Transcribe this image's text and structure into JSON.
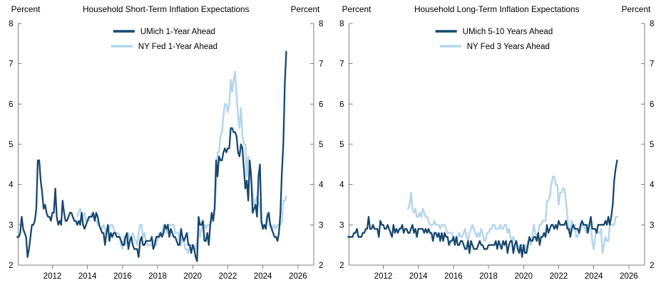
{
  "colors": {
    "dark_blue": "#17486F",
    "light_blue": "#B5D6EC",
    "axis": "#808080",
    "text": "#000000",
    "background": "#FFFFFF"
  },
  "chart_data": [
    {
      "type": "line",
      "title": "Household Short-Term Inflation Expectations",
      "unit_label_left": "Percent",
      "unit_label_right": "Percent",
      "ylim": [
        2,
        8
      ],
      "yticks": [
        2,
        3,
        4,
        5,
        6,
        7,
        8
      ],
      "xlim": [
        2010.05,
        2026.9
      ],
      "xticks": [
        2012,
        2014,
        2016,
        2018,
        2020,
        2022,
        2024,
        2026
      ],
      "grid": false,
      "legend_position": "top-center-inside",
      "series": [
        {
          "name": "UMich 1-Year Ahead",
          "color_key": "dark_blue",
          "line_width": 2.3,
          "start_year": 2010.0,
          "interval_years": 0.0833333,
          "values": [
            2.7,
            2.7,
            2.8,
            3.2,
            2.9,
            2.8,
            2.7,
            2.2,
            2.4,
            2.7,
            3.0,
            3.0,
            3.1,
            3.4,
            4.6,
            4.6,
            4.1,
            3.8,
            3.4,
            3.5,
            3.3,
            3.2,
            3.2,
            3.1,
            3.3,
            3.3,
            3.9,
            3.2,
            3.0,
            3.1,
            3.0,
            3.6,
            3.3,
            3.1,
            3.1,
            3.2,
            3.3,
            3.3,
            3.2,
            3.1,
            3.1,
            3.0,
            3.1,
            3.0,
            3.3,
            3.0,
            2.9,
            3.0,
            3.1,
            3.2,
            3.2,
            3.2,
            3.3,
            3.1,
            3.3,
            3.2,
            3.0,
            2.9,
            2.8,
            2.8,
            2.5,
            2.8,
            3.0,
            2.6,
            2.8,
            2.7,
            2.8,
            2.8,
            2.7,
            2.7,
            2.7,
            2.6,
            2.5,
            2.5,
            2.7,
            2.8,
            2.4,
            2.6,
            2.7,
            2.5,
            2.4,
            2.4,
            2.4,
            2.2,
            2.6,
            2.7,
            2.5,
            2.5,
            2.6,
            2.6,
            2.6,
            2.6,
            2.7,
            2.4,
            2.5,
            2.7,
            2.7,
            2.7,
            2.8,
            2.7,
            2.8,
            3.0,
            2.9,
            3.0,
            2.7,
            2.9,
            2.8,
            2.7,
            2.7,
            2.6,
            2.5,
            2.5,
            2.9,
            2.7,
            2.6,
            2.7,
            2.8,
            2.5,
            2.5,
            2.3,
            2.5,
            2.4,
            2.2,
            2.1,
            3.2,
            3.0,
            3.0,
            3.1,
            2.6,
            2.6,
            2.8,
            2.5,
            3.0,
            3.3,
            3.1,
            3.4,
            4.6,
            4.2,
            4.7,
            4.6,
            4.6,
            4.8,
            4.9,
            4.8,
            4.9,
            4.9,
            5.4,
            5.4,
            5.3,
            5.3,
            5.2,
            4.8,
            4.7,
            5.0,
            4.9,
            4.4,
            3.9,
            4.1,
            3.6,
            4.6,
            4.2,
            3.3,
            3.4,
            3.5,
            3.2,
            4.2,
            4.5,
            3.1,
            2.9,
            3.0,
            2.9,
            3.2,
            3.3,
            3.0,
            2.9,
            2.8,
            2.7,
            2.7,
            2.6,
            2.8,
            3.3,
            4.3,
            5.0,
            6.5,
            7.3
          ]
        },
        {
          "name": "NY Fed 1-Year Ahead",
          "color_key": "light_blue",
          "line_width": 2.5,
          "start_year": 2013.4167,
          "interval_years": 0.0833333,
          "values": [
            3.2,
            3.3,
            3.4,
            3.3,
            3.2,
            3.3,
            3.1,
            3.1,
            3.1,
            3.2,
            3.3,
            3.2,
            3.1,
            3.1,
            3.0,
            3.0,
            2.9,
            2.9,
            3.0,
            2.9,
            2.8,
            3.0,
            2.9,
            3.0,
            3.0,
            2.9,
            2.8,
            2.8,
            2.8,
            2.7,
            2.5,
            2.4,
            2.7,
            2.5,
            2.6,
            2.8,
            2.6,
            2.7,
            2.8,
            2.7,
            2.6,
            2.5,
            2.8,
            3.0,
            3.0,
            2.7,
            2.8,
            2.6,
            2.5,
            2.5,
            2.5,
            2.5,
            2.6,
            2.6,
            2.5,
            2.7,
            2.8,
            2.8,
            2.8,
            3.0,
            3.0,
            2.8,
            3.0,
            3.0,
            3.0,
            3.0,
            3.0,
            2.8,
            2.8,
            2.8,
            2.6,
            2.5,
            2.7,
            2.6,
            2.4,
            2.4,
            2.3,
            2.5,
            2.5,
            2.5,
            2.5,
            2.4,
            2.6,
            3.0,
            2.7,
            2.9,
            3.0,
            3.0,
            2.9,
            3.0,
            3.0,
            3.0,
            3.1,
            3.2,
            3.4,
            4.0,
            4.8,
            4.8,
            5.2,
            5.3,
            5.7,
            6.0,
            6.0,
            5.8,
            6.0,
            6.6,
            6.3,
            6.6,
            6.8,
            6.2,
            5.7,
            5.4,
            5.9,
            5.2,
            5.0,
            5.0,
            4.2,
            4.7,
            4.4,
            4.1,
            3.8,
            3.5,
            3.6,
            3.7,
            3.6,
            3.4,
            3.0,
            3.0,
            3.0,
            3.0,
            3.3,
            3.2,
            3.0,
            3.0,
            2.9,
            3.0,
            2.9,
            3.0,
            3.0,
            3.0,
            3.1,
            3.6,
            3.6,
            3.7
          ]
        }
      ]
    },
    {
      "type": "line",
      "title": "Household Long-Term Inflation Expectations",
      "unit_label_left": "Percent",
      "unit_label_right": "Percent",
      "ylim": [
        2,
        8
      ],
      "yticks": [
        2,
        3,
        4,
        5,
        6,
        7,
        8
      ],
      "xlim": [
        2010.05,
        2026.9
      ],
      "xticks": [
        2012,
        2014,
        2016,
        2018,
        2020,
        2022,
        2024,
        2026
      ],
      "grid": false,
      "legend_position": "top-center-inside",
      "series": [
        {
          "name": "UMich 5-10 Years Ahead",
          "color_key": "dark_blue",
          "line_width": 2.3,
          "start_year": 2010.0,
          "interval_years": 0.0833333,
          "values": [
            2.7,
            2.7,
            2.7,
            2.7,
            2.8,
            2.8,
            2.9,
            2.7,
            2.7,
            2.7,
            2.8,
            2.8,
            2.9,
            2.9,
            3.2,
            2.9,
            2.9,
            3.0,
            2.9,
            2.9,
            2.9,
            2.7,
            3.1,
            3.0,
            3.0,
            2.9,
            2.9,
            3.0,
            2.9,
            2.8,
            2.7,
            3.0,
            2.8,
            2.9,
            2.8,
            2.9,
            2.9,
            3.0,
            2.8,
            2.9,
            2.9,
            2.8,
            2.8,
            2.9,
            3.0,
            2.8,
            2.9,
            2.7,
            2.9,
            2.9,
            2.9,
            2.9,
            2.8,
            2.9,
            2.8,
            2.9,
            2.8,
            2.8,
            2.6,
            2.8,
            2.8,
            2.7,
            2.8,
            2.6,
            2.8,
            2.6,
            2.8,
            2.7,
            2.7,
            2.5,
            2.6,
            2.6,
            2.7,
            2.5,
            2.7,
            2.5,
            2.5,
            2.6,
            2.6,
            2.5,
            2.4,
            2.4,
            2.6,
            2.3,
            2.6,
            2.5,
            2.4,
            2.4,
            2.4,
            2.5,
            2.6,
            2.5,
            2.5,
            2.4,
            2.4,
            2.4,
            2.5,
            2.5,
            2.5,
            2.5,
            2.5,
            2.6,
            2.4,
            2.6,
            2.5,
            2.4,
            2.6,
            2.5,
            2.6,
            2.3,
            2.5,
            2.6,
            2.6,
            2.3,
            2.5,
            2.6,
            2.4,
            2.3,
            2.5,
            2.2,
            2.5,
            2.3,
            2.3,
            2.5,
            2.7,
            2.6,
            2.6,
            2.7,
            2.7,
            2.6,
            2.8,
            2.5,
            2.7,
            2.7,
            2.8,
            2.7,
            3.0,
            2.8,
            2.9,
            3.0,
            3.0,
            2.9,
            3.0,
            2.9,
            3.1,
            3.0,
            3.0,
            3.0,
            3.0,
            3.1,
            2.9,
            2.9,
            2.7,
            2.9,
            3.0,
            2.9,
            2.9,
            2.9,
            2.8,
            3.0,
            3.1,
            3.0,
            3.0,
            3.0,
            2.8,
            3.0,
            3.2,
            2.9,
            2.9,
            2.9,
            2.8,
            3.0,
            3.0,
            3.0,
            3.0,
            3.0,
            3.1,
            3.0,
            3.2,
            3.0,
            3.2,
            3.5,
            4.1,
            4.4,
            4.6
          ]
        },
        {
          "name": "NY Fed 3 Years Ahead",
          "color_key": "light_blue",
          "line_width": 2.5,
          "start_year": 2013.4167,
          "interval_years": 0.0833333,
          "values": [
            3.4,
            3.5,
            3.8,
            3.4,
            3.3,
            3.4,
            3.2,
            3.2,
            3.3,
            3.2,
            3.4,
            3.3,
            3.2,
            3.2,
            3.1,
            3.0,
            3.0,
            3.0,
            3.1,
            3.0,
            3.0,
            3.0,
            2.9,
            3.0,
            3.0,
            3.0,
            2.9,
            2.8,
            2.8,
            2.8,
            2.8,
            2.7,
            2.6,
            2.6,
            2.7,
            2.8,
            2.7,
            2.7,
            2.8,
            2.9,
            2.7,
            2.6,
            2.8,
            2.9,
            3.0,
            2.9,
            2.8,
            2.7,
            2.8,
            2.7,
            2.9,
            2.8,
            2.6,
            2.6,
            2.8,
            2.8,
            2.9,
            2.9,
            3.0,
            3.0,
            2.9,
            2.9,
            2.9,
            3.0,
            2.9,
            2.9,
            3.0,
            3.0,
            2.8,
            2.9,
            2.7,
            2.6,
            2.7,
            2.6,
            2.6,
            2.5,
            2.4,
            2.5,
            2.5,
            2.5,
            2.5,
            2.4,
            2.6,
            2.6,
            2.5,
            2.7,
            3.0,
            2.8,
            2.7,
            2.8,
            3.0,
            3.0,
            3.1,
            3.1,
            3.1,
            3.6,
            3.6,
            3.7,
            4.0,
            4.2,
            4.2,
            4.0,
            4.0,
            3.5,
            3.8,
            3.8,
            3.9,
            3.9,
            3.6,
            3.2,
            2.8,
            2.9,
            3.1,
            3.0,
            3.0,
            2.7,
            2.7,
            2.8,
            2.9,
            3.0,
            3.0,
            2.9,
            2.8,
            3.0,
            3.0,
            3.0,
            2.6,
            2.4,
            2.7,
            2.9,
            2.8,
            2.8,
            2.9,
            2.3,
            2.5,
            2.7,
            2.6,
            2.6,
            3.0,
            3.0,
            3.0,
            3.0,
            3.2,
            3.2
          ]
        }
      ]
    }
  ]
}
